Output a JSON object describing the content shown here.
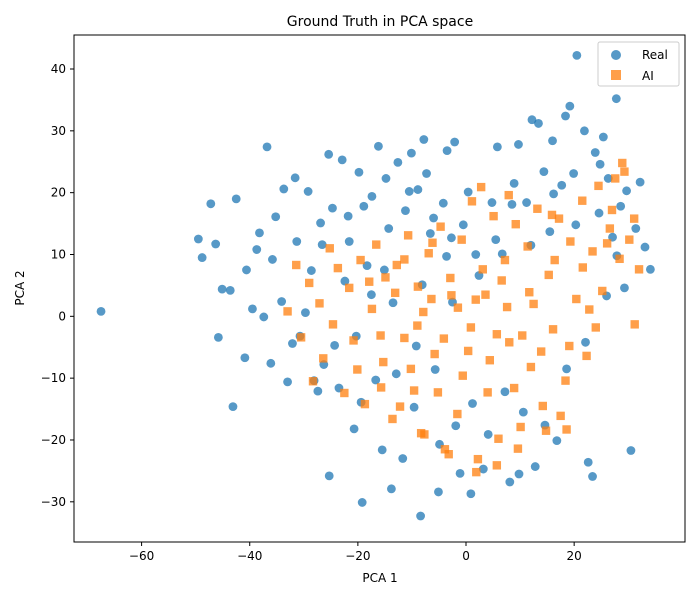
{
  "chart_data": {
    "type": "scatter",
    "title": "Ground Truth in PCA space",
    "xlabel": "PCA 1",
    "ylabel": "PCA 2",
    "xlim": [
      -72.5,
      40.5
    ],
    "ylim": [
      -36.5,
      45.5
    ],
    "xticks": [
      -60,
      -40,
      -20,
      0,
      20
    ],
    "yticks": [
      -30,
      -20,
      -10,
      0,
      10,
      20,
      30,
      40
    ],
    "grid": false,
    "legend_position": "top-right",
    "series": [
      {
        "name": "Real",
        "marker": "circle",
        "color": "#1f77b4",
        "points": [
          [
            -67.5,
            0.8
          ],
          [
            -49.5,
            12.5
          ],
          [
            -48.8,
            9.5
          ],
          [
            -47.2,
            18.2
          ],
          [
            -46.3,
            11.7
          ],
          [
            -45.8,
            -3.4
          ],
          [
            -45.1,
            4.4
          ],
          [
            -43.6,
            4.2
          ],
          [
            -43.1,
            -14.6
          ],
          [
            -42.5,
            19.0
          ],
          [
            -40.6,
            7.5
          ],
          [
            -39.5,
            1.2
          ],
          [
            -38.2,
            13.5
          ],
          [
            -37.4,
            -0.1
          ],
          [
            -36.8,
            27.4
          ],
          [
            -35.2,
            16.1
          ],
          [
            -33.7,
            20.6
          ],
          [
            -33.0,
            -10.6
          ],
          [
            -31.6,
            22.4
          ],
          [
            -30.7,
            -3.2
          ],
          [
            -29.2,
            20.2
          ],
          [
            -28.6,
            7.4
          ],
          [
            -27.4,
            -12.1
          ],
          [
            -26.3,
            -7.8
          ],
          [
            -25.4,
            26.2
          ],
          [
            -25.3,
            -25.8
          ],
          [
            -24.7,
            17.5
          ],
          [
            -22.9,
            25.3
          ],
          [
            -21.6,
            12.1
          ],
          [
            -20.7,
            -18.2
          ],
          [
            -19.8,
            23.3
          ],
          [
            -19.2,
            -30.1
          ],
          [
            -18.3,
            8.2
          ],
          [
            -17.4,
            19.4
          ],
          [
            -16.2,
            27.5
          ],
          [
            -15.5,
            -21.6
          ],
          [
            -14.3,
            14.2
          ],
          [
            -13.8,
            -27.9
          ],
          [
            -12.6,
            24.9
          ],
          [
            -11.7,
            -23.0
          ],
          [
            -10.1,
            26.4
          ],
          [
            -8.9,
            20.5
          ],
          [
            -8.4,
            -32.3
          ],
          [
            -7.8,
            28.6
          ],
          [
            -6.0,
            15.9
          ],
          [
            -5.1,
            -28.4
          ],
          [
            -3.5,
            26.8
          ],
          [
            -2.7,
            12.7
          ],
          [
            -2.1,
            28.2
          ],
          [
            -1.1,
            -25.4
          ],
          [
            0.4,
            20.1
          ],
          [
            0.9,
            -28.7
          ],
          [
            1.8,
            10.0
          ],
          [
            3.2,
            -24.7
          ],
          [
            4.8,
            18.4
          ],
          [
            5.8,
            27.4
          ],
          [
            6.7,
            10.1
          ],
          [
            8.1,
            -26.8
          ],
          [
            8.9,
            21.5
          ],
          [
            9.8,
            -25.5
          ],
          [
            9.7,
            27.8
          ],
          [
            11.2,
            18.4
          ],
          [
            12.2,
            31.8
          ],
          [
            12.8,
            -24.3
          ],
          [
            13.4,
            31.2
          ],
          [
            14.4,
            23.4
          ],
          [
            15.5,
            13.7
          ],
          [
            16.0,
            28.4
          ],
          [
            16.8,
            -20.1
          ],
          [
            17.7,
            21.2
          ],
          [
            18.4,
            32.4
          ],
          [
            19.2,
            34.0
          ],
          [
            19.9,
            23.1
          ],
          [
            20.5,
            42.2
          ],
          [
            21.9,
            30.0
          ],
          [
            22.6,
            -23.6
          ],
          [
            23.4,
            -25.9
          ],
          [
            23.9,
            26.5
          ],
          [
            24.8,
            24.6
          ],
          [
            25.4,
            29.0
          ],
          [
            26.3,
            22.3
          ],
          [
            27.1,
            12.8
          ],
          [
            27.8,
            35.2
          ],
          [
            28.6,
            17.8
          ],
          [
            29.7,
            20.3
          ],
          [
            30.5,
            -21.7
          ],
          [
            31.4,
            14.2
          ],
          [
            32.2,
            21.7
          ],
          [
            33.1,
            11.2
          ],
          [
            34.1,
            7.6
          ],
          [
            -35.8,
            9.2
          ],
          [
            -32.1,
            -4.4
          ],
          [
            -29.7,
            0.6
          ],
          [
            -26.6,
            11.6
          ],
          [
            -24.3,
            -4.7
          ],
          [
            -21.8,
            16.2
          ],
          [
            -19.4,
            -13.9
          ],
          [
            -17.5,
            3.5
          ],
          [
            -15.1,
            7.5
          ],
          [
            -12.9,
            -9.3
          ],
          [
            -11.2,
            17.1
          ],
          [
            -9.6,
            -14.7
          ],
          [
            -8.1,
            5.1
          ],
          [
            -6.6,
            13.4
          ],
          [
            -4.9,
            -20.7
          ],
          [
            -3.6,
            9.7
          ],
          [
            -1.9,
            -17.7
          ],
          [
            -0.5,
            14.8
          ],
          [
            1.2,
            -14.1
          ],
          [
            2.4,
            6.6
          ],
          [
            4.1,
            -19.1
          ],
          [
            5.5,
            12.4
          ],
          [
            7.2,
            -12.2
          ],
          [
            8.5,
            18.1
          ],
          [
            10.6,
            -15.5
          ],
          [
            12.0,
            11.5
          ],
          [
            14.6,
            -17.6
          ],
          [
            16.2,
            19.8
          ],
          [
            18.6,
            -8.5
          ],
          [
            20.3,
            14.8
          ],
          [
            22.1,
            -4.2
          ],
          [
            24.6,
            16.7
          ],
          [
            26.0,
            3.3
          ],
          [
            27.9,
            9.8
          ],
          [
            29.3,
            4.6
          ],
          [
            -40.9,
            -6.7
          ],
          [
            -38.7,
            10.8
          ],
          [
            -36.1,
            -7.6
          ],
          [
            -34.1,
            2.4
          ],
          [
            -31.3,
            12.1
          ],
          [
            -28.1,
            -10.4
          ],
          [
            -26.9,
            15.1
          ],
          [
            -23.5,
            -11.6
          ],
          [
            -22.4,
            5.7
          ],
          [
            -20.3,
            -3.2
          ],
          [
            -18.9,
            17.8
          ],
          [
            -16.7,
            -10.3
          ],
          [
            -14.8,
            22.3
          ],
          [
            -13.5,
            2.2
          ],
          [
            -10.5,
            20.2
          ],
          [
            -9.2,
            -4.8
          ],
          [
            -7.3,
            23.1
          ],
          [
            -5.7,
            -8.6
          ],
          [
            -4.2,
            18.3
          ],
          [
            -2.5,
            2.3
          ]
        ]
      },
      {
        "name": "AI",
        "marker": "square",
        "color": "#ff7f0e",
        "points": [
          [
            -33.0,
            0.8
          ],
          [
            -31.4,
            8.3
          ],
          [
            -30.5,
            -3.4
          ],
          [
            -29.0,
            5.4
          ],
          [
            -28.3,
            -10.5
          ],
          [
            -27.1,
            2.1
          ],
          [
            -26.4,
            -6.8
          ],
          [
            -25.2,
            11.0
          ],
          [
            -24.6,
            -1.3
          ],
          [
            -23.7,
            7.8
          ],
          [
            -22.5,
            -12.4
          ],
          [
            -21.6,
            4.6
          ],
          [
            -20.8,
            -3.9
          ],
          [
            -19.5,
            9.1
          ],
          [
            -18.7,
            -14.2
          ],
          [
            -17.4,
            1.2
          ],
          [
            -16.6,
            11.6
          ],
          [
            -15.3,
            -7.4
          ],
          [
            -14.9,
            6.3
          ],
          [
            -13.6,
            -16.6
          ],
          [
            -12.8,
            8.3
          ],
          [
            -11.4,
            -3.5
          ],
          [
            -10.7,
            13.1
          ],
          [
            -9.6,
            -12.0
          ],
          [
            -8.9,
            4.8
          ],
          [
            -7.7,
            -19.1
          ],
          [
            -6.9,
            10.2
          ],
          [
            -5.8,
            -6.1
          ],
          [
            -4.7,
            14.5
          ],
          [
            -3.9,
            -21.5
          ],
          [
            -2.7,
            3.4
          ],
          [
            -1.6,
            -15.8
          ],
          [
            -0.8,
            12.4
          ],
          [
            0.4,
            -5.6
          ],
          [
            1.1,
            18.6
          ],
          [
            2.2,
            -23.1
          ],
          [
            3.1,
            7.6
          ],
          [
            4.0,
            -12.3
          ],
          [
            5.1,
            16.2
          ],
          [
            6.0,
            -19.8
          ],
          [
            7.2,
            9.1
          ],
          [
            8.0,
            -4.2
          ],
          [
            9.2,
            14.9
          ],
          [
            10.1,
            -17.9
          ],
          [
            11.4,
            11.3
          ],
          [
            12.0,
            -8.2
          ],
          [
            13.2,
            17.4
          ],
          [
            14.2,
            -14.5
          ],
          [
            15.3,
            6.7
          ],
          [
            16.1,
            -2.1
          ],
          [
            17.2,
            15.8
          ],
          [
            18.4,
            -10.4
          ],
          [
            19.3,
            12.1
          ],
          [
            20.4,
            2.8
          ],
          [
            21.5,
            18.7
          ],
          [
            22.3,
            -6.4
          ],
          [
            23.4,
            10.5
          ],
          [
            24.5,
            21.1
          ],
          [
            25.2,
            4.1
          ],
          [
            26.6,
            14.2
          ],
          [
            27.6,
            22.3
          ],
          [
            28.4,
            9.3
          ],
          [
            29.3,
            23.4
          ],
          [
            30.2,
            12.4
          ],
          [
            31.1,
            15.8
          ],
          [
            32.0,
            7.6
          ],
          [
            31.2,
            -1.3
          ],
          [
            27.0,
            17.2
          ],
          [
            22.8,
            1.1
          ],
          [
            18.6,
            -18.3
          ],
          [
            -20.1,
            -8.6
          ],
          [
            -17.9,
            5.6
          ],
          [
            -15.7,
            -11.5
          ],
          [
            -13.1,
            3.8
          ],
          [
            -10.2,
            -8.5
          ],
          [
            -7.9,
            0.7
          ],
          [
            -5.2,
            -12.3
          ],
          [
            -2.9,
            6.2
          ],
          [
            -0.6,
            -9.6
          ],
          [
            1.8,
            2.7
          ],
          [
            4.4,
            -7.1
          ],
          [
            6.6,
            5.8
          ],
          [
            8.9,
            -11.6
          ],
          [
            11.7,
            3.9
          ],
          [
            13.9,
            -5.7
          ],
          [
            16.4,
            9.1
          ],
          [
            19.1,
            -4.8
          ],
          [
            21.6,
            7.9
          ],
          [
            24.0,
            -1.8
          ],
          [
            26.1,
            11.8
          ],
          [
            -9.0,
            -1.5
          ],
          [
            -6.4,
            2.8
          ],
          [
            -4.1,
            -3.6
          ],
          [
            -1.5,
            1.4
          ],
          [
            0.9,
            -1.8
          ],
          [
            3.6,
            3.5
          ],
          [
            5.7,
            -2.9
          ],
          [
            7.6,
            1.5
          ],
          [
            10.4,
            -3.1
          ],
          [
            12.5,
            2.0
          ],
          [
            -3.2,
            -22.3
          ],
          [
            1.9,
            -25.2
          ],
          [
            5.7,
            -24.1
          ],
          [
            -8.3,
            -18.9
          ],
          [
            9.6,
            -21.4
          ],
          [
            14.8,
            -18.5
          ],
          [
            17.5,
            -16.1
          ],
          [
            -12.2,
            -14.6
          ],
          [
            -15.8,
            -3.1
          ],
          [
            -11.4,
            9.2
          ],
          [
            -6.2,
            11.9
          ],
          [
            2.8,
            20.9
          ],
          [
            7.9,
            19.6
          ],
          [
            15.9,
            16.4
          ],
          [
            28.9,
            24.8
          ]
        ]
      }
    ]
  }
}
